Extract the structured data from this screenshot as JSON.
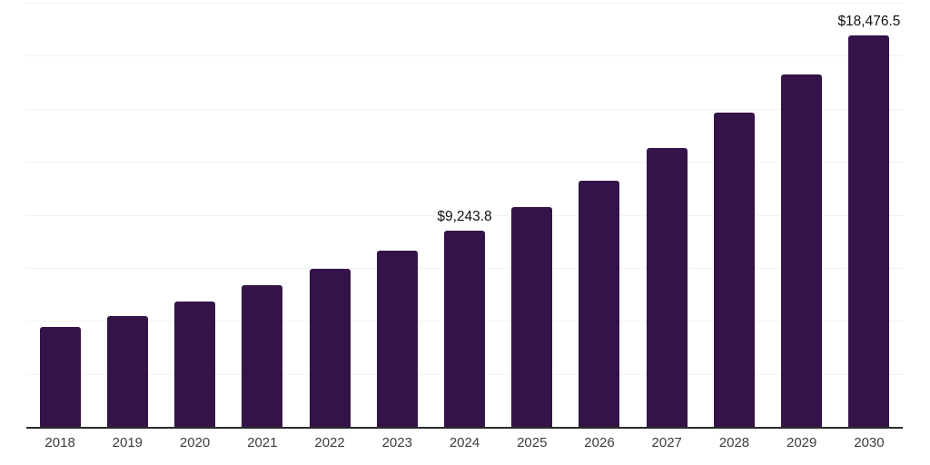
{
  "chart": {
    "background_color": "#ffffff",
    "bar_color": "#341349",
    "axis_line_color": "#2b2b2b",
    "gridline_color": "#f2f2f2",
    "tick_label_color": "#3d3d3d",
    "data_label_color": "#111111"
  },
  "chart_data": {
    "type": "bar",
    "title": "",
    "xlabel": "",
    "ylabel": "",
    "categories": [
      "2018",
      "2019",
      "2020",
      "2021",
      "2022",
      "2023",
      "2024",
      "2025",
      "2026",
      "2027",
      "2028",
      "2029",
      "2030"
    ],
    "values": [
      4710,
      5210,
      5920,
      6690,
      7440,
      8300,
      9243.8,
      10360,
      11610,
      13150,
      14840,
      16610,
      18476.5
    ],
    "data_labels": {
      "2024": "$9,243.8",
      "2030": "$18,476.5"
    },
    "ylim": [
      0,
      20000
    ],
    "gridline_interval": 2500,
    "grid": true,
    "y_axis_tick_labels_visible": false,
    "legend": false,
    "legend_position": "none"
  }
}
